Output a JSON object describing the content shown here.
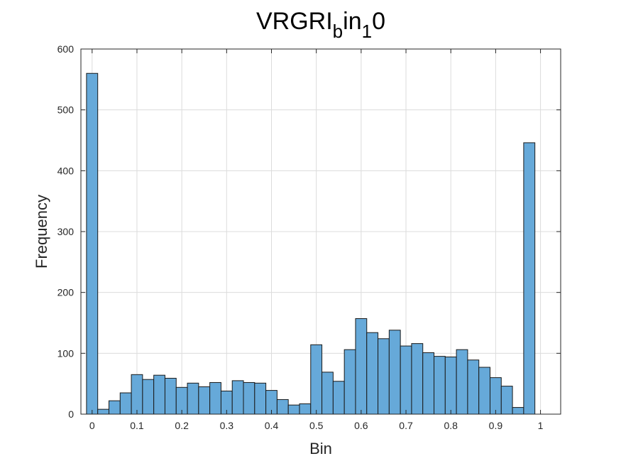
{
  "chart_data": {
    "type": "bar",
    "title": "VRGRI_bin_10",
    "title_parts": {
      "main": "VRGRI",
      "sub1": "b",
      "mid": "in",
      "sub2": "1",
      "tail": "0"
    },
    "xlabel": "Bin",
    "ylabel": "Frequency",
    "xlim": [
      -0.025,
      1.045
    ],
    "ylim": [
      0,
      600
    ],
    "xticks": [
      "0",
      "0.1",
      "0.2",
      "0.3",
      "0.4",
      "0.5",
      "0.6",
      "0.7",
      "0.8",
      "0.9",
      "1"
    ],
    "yticks": [
      "0",
      "100",
      "200",
      "300",
      "400",
      "500",
      "600"
    ],
    "bin_width": 0.025,
    "bin_start": 0,
    "values": [
      560,
      8,
      22,
      35,
      65,
      57,
      64,
      59,
      44,
      51,
      45,
      52,
      38,
      55,
      52,
      51,
      39,
      24,
      15,
      17,
      114,
      69,
      54,
      106,
      157,
      134,
      124,
      138,
      112,
      116,
      101,
      95,
      94,
      106,
      89,
      77,
      60,
      46,
      11,
      446
    ],
    "grid": true,
    "bar_color": "#66a9d9",
    "bar_edge": "#1a1a1a"
  }
}
